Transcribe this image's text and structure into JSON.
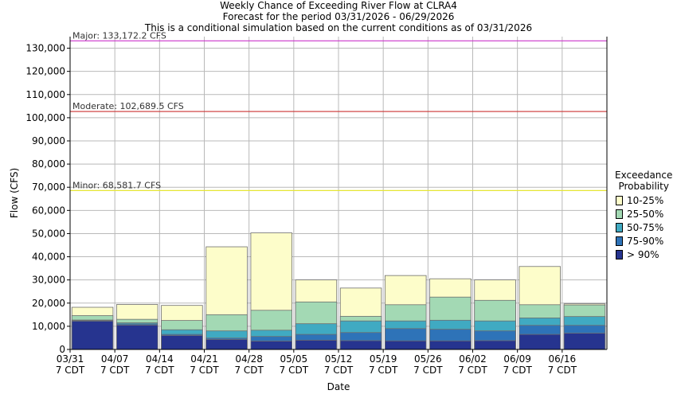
{
  "chart_data": {
    "type": "bar",
    "title": "Weekly Chance of Exceeding River Flow at CLRA4",
    "subtitle_1": "Forecast for the period 03/31/2026 - 06/29/2026",
    "subtitle_2": "This is a conditional simulation based on the current conditions as of 03/31/2026",
    "xlabel": "Date",
    "ylabel": "Flow (CFS)",
    "ylim": [
      0,
      135000
    ],
    "yticks": [
      0,
      10000,
      20000,
      30000,
      40000,
      50000,
      60000,
      70000,
      80000,
      90000,
      100000,
      110000,
      120000,
      130000
    ],
    "ytick_labels": [
      "0",
      "10,000",
      "20,000",
      "30,000",
      "40,000",
      "50,000",
      "60,000",
      "70,000",
      "80,000",
      "90,000",
      "100,000",
      "110,000",
      "120,000",
      "130,000"
    ],
    "x_tick_labels": [
      {
        "date": "03/31",
        "tz": "7 CDT"
      },
      {
        "date": "04/07",
        "tz": "7 CDT"
      },
      {
        "date": "04/14",
        "tz": "7 CDT"
      },
      {
        "date": "04/21",
        "tz": "7 CDT"
      },
      {
        "date": "04/28",
        "tz": "7 CDT"
      },
      {
        "date": "05/05",
        "tz": "7 CDT"
      },
      {
        "date": "05/12",
        "tz": "7 CDT"
      },
      {
        "date": "05/19",
        "tz": "7 CDT"
      },
      {
        "date": "05/26",
        "tz": "7 CDT"
      },
      {
        "date": "06/02",
        "tz": "7 CDT"
      },
      {
        "date": "06/09",
        "tz": "7 CDT"
      },
      {
        "date": "06/16",
        "tz": "7 CDT"
      }
    ],
    "grid": true,
    "legend_title_1": "Exceedance",
    "legend_title_2": "Probability",
    "series": [
      {
        "name": "> 90%",
        "color": "#26348f",
        "values": [
          12200,
          10500,
          6000,
          4300,
          3600,
          4000,
          3800,
          3700,
          3700,
          3800,
          6500,
          7000
        ]
      },
      {
        "name": "75-90%",
        "color": "#2e73b8",
        "values": [
          12500,
          11000,
          6500,
          4900,
          5600,
          6500,
          7300,
          9000,
          8700,
          8000,
          10400,
          10400
        ]
      },
      {
        "name": "50-75%",
        "color": "#40aac2",
        "values": [
          12700,
          11500,
          8500,
          8000,
          8300,
          11100,
          12300,
          12300,
          12600,
          12300,
          13600,
          14200
        ]
      },
      {
        "name": "25-50%",
        "color": "#a3d9b4",
        "values": [
          14600,
          13000,
          12500,
          15000,
          16900,
          20500,
          14300,
          19300,
          22600,
          21200,
          19300,
          19200
        ]
      },
      {
        "name": "10-25%",
        "color": "#fdfdca",
        "values": [
          18200,
          19400,
          19000,
          44300,
          50300,
          30000,
          26500,
          31900,
          30500,
          30000,
          35800,
          19700
        ]
      }
    ],
    "thresholds": [
      {
        "label": "Major: 133,172.2 CFS",
        "value": 133172.2,
        "color": "#cc33cc"
      },
      {
        "label": "Moderate: 102,689.5 CFS",
        "value": 102689.5,
        "color": "#cc3333"
      },
      {
        "label": "Minor: 68,581.7 CFS",
        "value": 68581.7,
        "color": "#e6e633"
      }
    ]
  }
}
